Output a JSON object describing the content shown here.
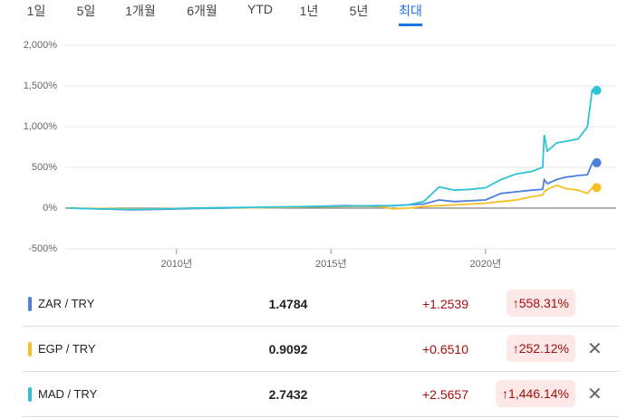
{
  "tabs": [
    "1일",
    "5일",
    "1개월",
    "6개월",
    "YTD",
    "1년",
    "5년",
    "최대"
  ],
  "selected_tab": "최대",
  "chart_data": {
    "type": "line",
    "x": [
      2006.5,
      2007.5,
      2008.5,
      2009.5,
      2010.5,
      2011.5,
      2012.5,
      2013.5,
      2014.5,
      2015.5,
      2016.5,
      2017.0,
      2017.5,
      2018.0,
      2018.5,
      2019.0,
      2019.5,
      2020.0,
      2020.5,
      2021.0,
      2021.5,
      2021.85,
      2021.9,
      2022.0,
      2022.3,
      2022.6,
      2023.0,
      2023.3,
      2023.45,
      2023.6
    ],
    "series": [
      {
        "name": "ZAR / TRY",
        "color": "#4e7fe0",
        "values": [
          0,
          -10,
          -20,
          -15,
          -5,
          0,
          5,
          10,
          20,
          30,
          20,
          30,
          40,
          50,
          100,
          80,
          90,
          100,
          180,
          200,
          220,
          230,
          350,
          300,
          350,
          380,
          400,
          410,
          550,
          558
        ]
      },
      {
        "name": "EGP / TRY",
        "color": "#f6bf26",
        "values": [
          0,
          -5,
          -10,
          -8,
          0,
          5,
          5,
          10,
          15,
          20,
          25,
          -10,
          0,
          20,
          30,
          40,
          50,
          60,
          80,
          100,
          140,
          160,
          200,
          230,
          280,
          240,
          220,
          180,
          250,
          252
        ]
      },
      {
        "name": "MAD / TRY",
        "color": "#2ec4d6",
        "values": [
          0,
          -10,
          -15,
          -10,
          0,
          5,
          10,
          15,
          20,
          25,
          30,
          30,
          40,
          80,
          260,
          220,
          230,
          250,
          350,
          420,
          450,
          500,
          900,
          700,
          800,
          820,
          850,
          1000,
          1450,
          1446
        ]
      }
    ],
    "xlim": [
      2006.4,
      2023.7
    ],
    "xticks": [
      {
        "value": 2010,
        "label": "2010년"
      },
      {
        "value": 2015,
        "label": "2015년"
      },
      {
        "value": 2020,
        "label": "2020년"
      }
    ],
    "ylim": [
      -500,
      2000
    ],
    "yticks": [
      {
        "value": -500,
        "label": "-500%"
      },
      {
        "value": 0,
        "label": "0%"
      },
      {
        "value": 500,
        "label": "500%"
      },
      {
        "value": 1000,
        "label": "1,000%"
      },
      {
        "value": 1500,
        "label": "1,500%"
      },
      {
        "value": 2000,
        "label": "2,000%"
      }
    ],
    "grid": true
  },
  "table": {
    "rows": [
      {
        "price": "1.4784",
        "change": "+1.2539",
        "percent": "558.31%",
        "removable": false
      },
      {
        "price": "0.9092",
        "change": "+0.6510",
        "percent": "252.12%",
        "removable": true
      },
      {
        "price": "2.7432",
        "change": "+2.5657",
        "percent": "1,446.14%",
        "removable": true
      }
    ]
  }
}
